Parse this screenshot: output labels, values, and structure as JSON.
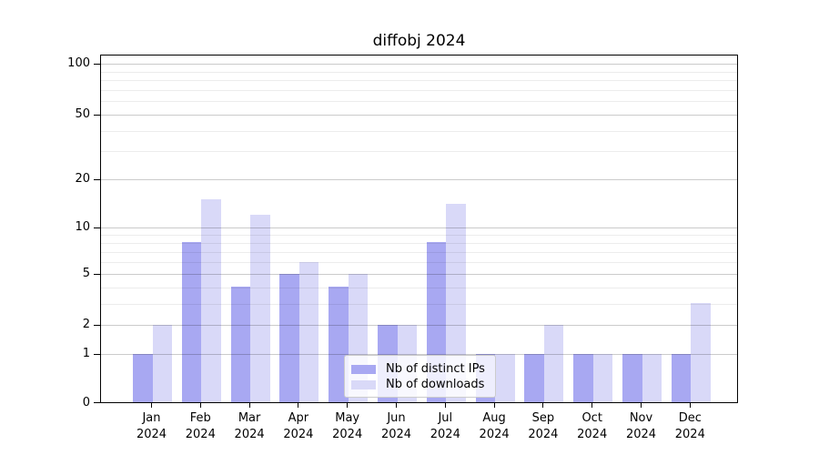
{
  "title": "diffobj 2024",
  "chart_data": {
    "type": "bar",
    "title": "diffobj 2024",
    "categories": [
      "Jan",
      "Feb",
      "Mar",
      "Apr",
      "May",
      "Jun",
      "Jul",
      "Aug",
      "Sep",
      "Oct",
      "Nov",
      "Dec"
    ],
    "x_year": "2024",
    "series": [
      {
        "name": "Nb of distinct IPs",
        "color": "#a8a8f2",
        "values": [
          1,
          8,
          4,
          5,
          4,
          2,
          8,
          1,
          1,
          1,
          1,
          1
        ]
      },
      {
        "name": "Nb of downloads",
        "color": "#d9d9f8",
        "values": [
          2,
          15,
          12,
          6,
          5,
          2,
          14,
          1,
          2,
          1,
          1,
          3
        ]
      }
    ],
    "xlabel": "",
    "ylabel": "",
    "y_axis": {
      "scale": "log1p",
      "major_ticks": [
        0,
        1,
        2,
        5,
        10,
        20,
        50,
        100
      ],
      "minor_ticks": [
        3,
        4,
        6,
        7,
        8,
        9,
        30,
        40,
        60,
        70,
        80,
        90
      ],
      "ylim": [
        0,
        113
      ]
    },
    "legend_position": "lower center",
    "grid": "on"
  },
  "colors": {
    "bar_distinct_ips": "#a8a8f2",
    "bar_downloads": "#d9d9f8",
    "grid_major": "#cbcbcb",
    "grid_minor": "#ececec",
    "axis": "#000000",
    "background": "#ffffff"
  }
}
